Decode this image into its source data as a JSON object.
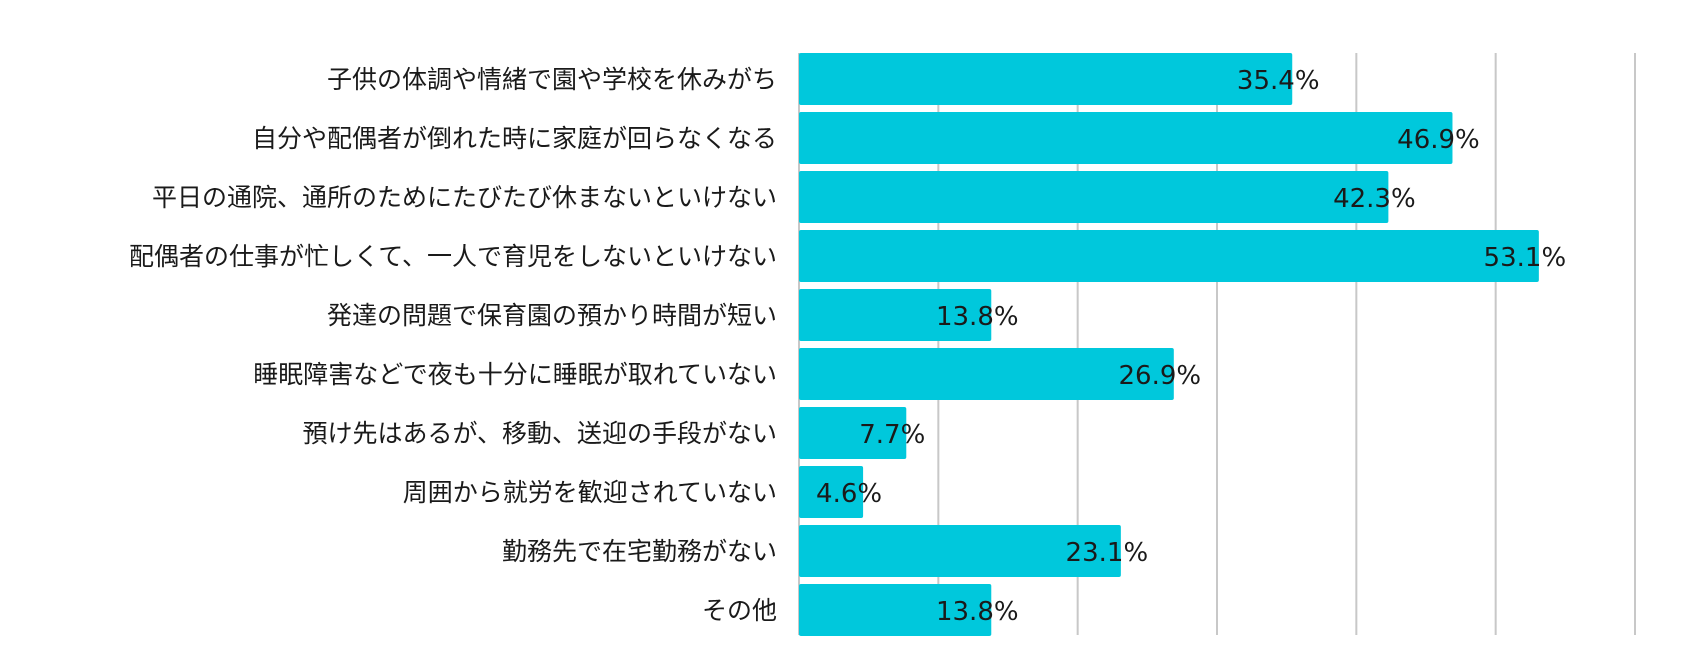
{
  "chart_data": {
    "type": "bar",
    "orientation": "horizontal",
    "categories": [
      "子供の体調や情緒で園や学校を休みがち",
      "自分や配偶者が倒れた時に家庭が回らなくなる",
      "平日の通院、通所のためにたびたび休まないといけない",
      "配偶者の仕事が忙しくて、一人で育児をしないといけない",
      "発達の問題で保育園の預かり時間が短い",
      "睡眠障害などで夜も十分に睡眠が取れていない",
      "預け先はあるが、移動、送迎の手段がない",
      "周囲から就労を歓迎されていない",
      "勤務先で在宅勤務がない",
      "その他"
    ],
    "values": [
      35.4,
      46.9,
      42.3,
      53.1,
      13.8,
      26.9,
      7.7,
      4.6,
      23.1,
      13.8
    ],
    "value_labels": [
      "35.4%",
      "46.9%",
      "42.3%",
      "53.1%",
      "13.8%",
      "26.9%",
      "7.7%",
      "4.6%",
      "23.1%",
      "13.8%"
    ],
    "xlim": [
      0,
      60
    ],
    "grid": true,
    "legend": "none",
    "colors": {
      "bar": "#00c8dc"
    }
  }
}
